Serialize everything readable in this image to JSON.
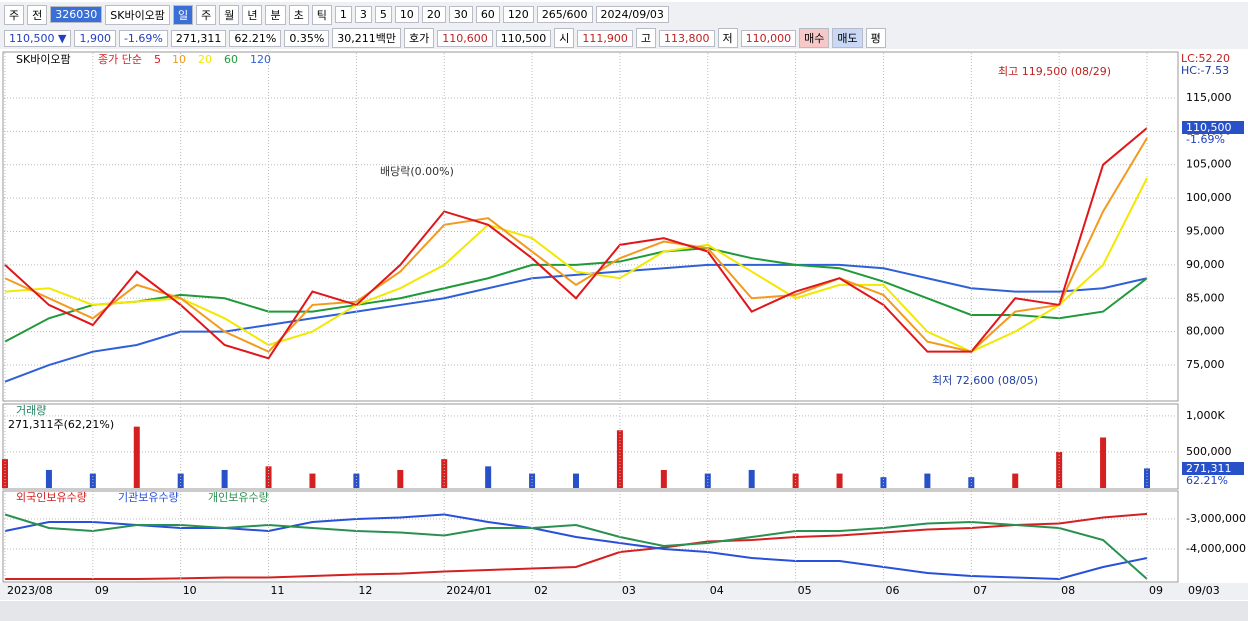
{
  "toolbar": [
    "주",
    "전",
    "326030",
    "SK바이오팜",
    "일",
    "주",
    "월",
    "년",
    "분",
    "초",
    "틱",
    "1",
    "3",
    "5",
    "10",
    "20",
    "30",
    "60",
    "120",
    "265/600",
    "2024/09/03"
  ],
  "infobar": [
    "110,500 ▼",
    "1,900",
    "-1.69%",
    "271,311",
    "62.21%",
    "0.35%",
    "30,211백만",
    "호가",
    "110,600",
    "110,500",
    "시",
    "111,900",
    "고",
    "113,800",
    "저",
    "110,000",
    "매수",
    "매도",
    "평"
  ],
  "chart_data": [
    {
      "type": "line",
      "title": "SK바이오팜",
      "legend_label": "종가 단순",
      "categories": [
        "2023/08",
        null,
        "09",
        null,
        "10",
        null,
        "11",
        null,
        "12",
        null,
        "2024/01",
        null,
        "02",
        null,
        "03",
        null,
        "04",
        null,
        "05",
        null,
        "06",
        null,
        "07",
        null,
        "08",
        null,
        "09"
      ],
      "last_label": "09/03",
      "series": [
        {
          "name": "120",
          "color": "#3060d8",
          "values": [
            72500,
            75000,
            77000,
            78000,
            80000,
            80000,
            81000,
            82000,
            83000,
            84000,
            85000,
            86500,
            88000,
            88500,
            89000,
            89500,
            90000,
            90000,
            90000,
            90000,
            89500,
            88000,
            86500,
            86000,
            86000,
            86500,
            88000
          ]
        },
        {
          "name": "60",
          "color": "#1f9a3a",
          "values": [
            78500,
            82000,
            84000,
            84500,
            85500,
            85000,
            83000,
            83000,
            84000,
            85000,
            86500,
            88000,
            90000,
            90000,
            90500,
            92000,
            92500,
            91000,
            90000,
            89500,
            87500,
            85000,
            82500,
            82500,
            82000,
            83000,
            88000
          ]
        },
        {
          "name": "20",
          "color": "#f2e800",
          "values": [
            86000,
            86500,
            84000,
            84500,
            85000,
            82000,
            78000,
            80000,
            84000,
            86500,
            90000,
            96000,
            94000,
            89000,
            88000,
            92000,
            93000,
            89000,
            85000,
            87000,
            87000,
            80000,
            77000,
            80000,
            84000,
            90000,
            103000
          ]
        },
        {
          "name": "10",
          "color": "#f39a1e",
          "values": [
            88000,
            85000,
            82000,
            87000,
            85000,
            80000,
            77000,
            84000,
            84500,
            89000,
            96000,
            97000,
            92000,
            87000,
            91000,
            93500,
            92500,
            85000,
            85500,
            88000,
            85500,
            78500,
            77000,
            83000,
            84000,
            98000,
            109000
          ]
        },
        {
          "name": "5",
          "color": "#e0161a",
          "values": [
            90000,
            84000,
            81000,
            89000,
            84000,
            78000,
            76000,
            86000,
            84000,
            90000,
            98000,
            96000,
            91000,
            85000,
            93000,
            94000,
            92000,
            83000,
            86000,
            88000,
            84000,
            77000,
            77000,
            85000,
            84000,
            105000,
            110500
          ]
        }
      ],
      "ylim": [
        69760,
        119940
      ],
      "yticks": [
        {
          "value": 75000,
          "label": "75,000"
        },
        {
          "value": 80000,
          "label": "80,000"
        },
        {
          "value": 85000,
          "label": "85,000"
        },
        {
          "value": 90000,
          "label": "90,000"
        },
        {
          "value": 95000,
          "label": "95,000"
        },
        {
          "value": 100000,
          "label": "100,000"
        },
        {
          "value": 105000,
          "label": "105,000"
        },
        {
          "value": 110000,
          "label": "110,000"
        },
        {
          "value": 115000,
          "label": "115,000"
        }
      ],
      "grid": true,
      "annotations": [
        "최고 119,500 (08/29)",
        "최저 72,600 (08/05)",
        "배당락(0.00%)",
        "LC:52.20",
        "HC:-7.53",
        "110,500",
        "-1.69%"
      ]
    },
    {
      "type": "bar",
      "title": "거래량",
      "subtitle": "271,311주(62,21%)",
      "values": [
        400000,
        250000,
        200000,
        850000,
        200000,
        250000,
        300000,
        200000,
        200000,
        250000,
        400000,
        300000,
        200000,
        200000,
        800000,
        250000,
        200000,
        250000,
        200000,
        200000,
        150000,
        200000,
        150000,
        200000,
        500000,
        700000,
        271311
      ],
      "colors": [
        "#d42020",
        "#2850c8",
        "#2850c8",
        "#d42020",
        "#2850c8",
        "#2850c8",
        "#d42020",
        "#d42020",
        "#2850c8",
        "#d42020",
        "#d42020",
        "#2850c8",
        "#2850c8",
        "#2850c8",
        "#d42020",
        "#d42020",
        "#2850c8",
        "#2850c8",
        "#d42020",
        "#d42020",
        "#2850c8",
        "#2850c8",
        "#2850c8",
        "#d42020",
        "#d42020",
        "#d42020",
        "#2850c8"
      ],
      "ylim": [
        0,
        1150000
      ],
      "yticks": [
        {
          "value": 500000,
          "label": "500,000"
        },
        {
          "value": 1000000,
          "label": "1,000K"
        }
      ],
      "last_labels": [
        "271,311",
        "62.21%"
      ]
    },
    {
      "type": "line",
      "series": [
        {
          "name": "외국인보유수량",
          "color": "#d42020",
          "values": [
            -5000000,
            -5000000,
            -5000000,
            -5000000,
            -4980000,
            -4950000,
            -4950000,
            -4900000,
            -4850000,
            -4820000,
            -4750000,
            -4700000,
            -4650000,
            -4600000,
            -4100000,
            -3950000,
            -3750000,
            -3700000,
            -3600000,
            -3550000,
            -3450000,
            -3350000,
            -3300000,
            -3200000,
            -3150000,
            -2950000,
            -2830000
          ]
        },
        {
          "name": "기관보유수량",
          "color": "#2850d8",
          "values": [
            -3400000,
            -3100000,
            -3100000,
            -3200000,
            -3300000,
            -3300000,
            -3400000,
            -3100000,
            -3000000,
            -2950000,
            -2850000,
            -3100000,
            -3300000,
            -3600000,
            -3800000,
            -4000000,
            -4100000,
            -4300000,
            -4400000,
            -4400000,
            -4600000,
            -4800000,
            -4900000,
            -4950000,
            -5000000,
            -4600000,
            -4300000
          ]
        },
        {
          "name": "개인보유수량",
          "color": "#2a9050",
          "values": [
            -2850000,
            -3300000,
            -3400000,
            -3200000,
            -3200000,
            -3300000,
            -3200000,
            -3300000,
            -3400000,
            -3450000,
            -3550000,
            -3300000,
            -3300000,
            -3200000,
            -3600000,
            -3900000,
            -3800000,
            -3600000,
            -3400000,
            -3400000,
            -3300000,
            -3150000,
            -3100000,
            -3200000,
            -3300000,
            -3700000,
            -5000000
          ]
        }
      ],
      "ylim": [
        -5100000,
        -2533000
      ],
      "yticks": [
        {
          "value": -3000000,
          "label": "-3,000,000"
        },
        {
          "value": -4000000,
          "label": "-4,000,000"
        }
      ]
    }
  ]
}
